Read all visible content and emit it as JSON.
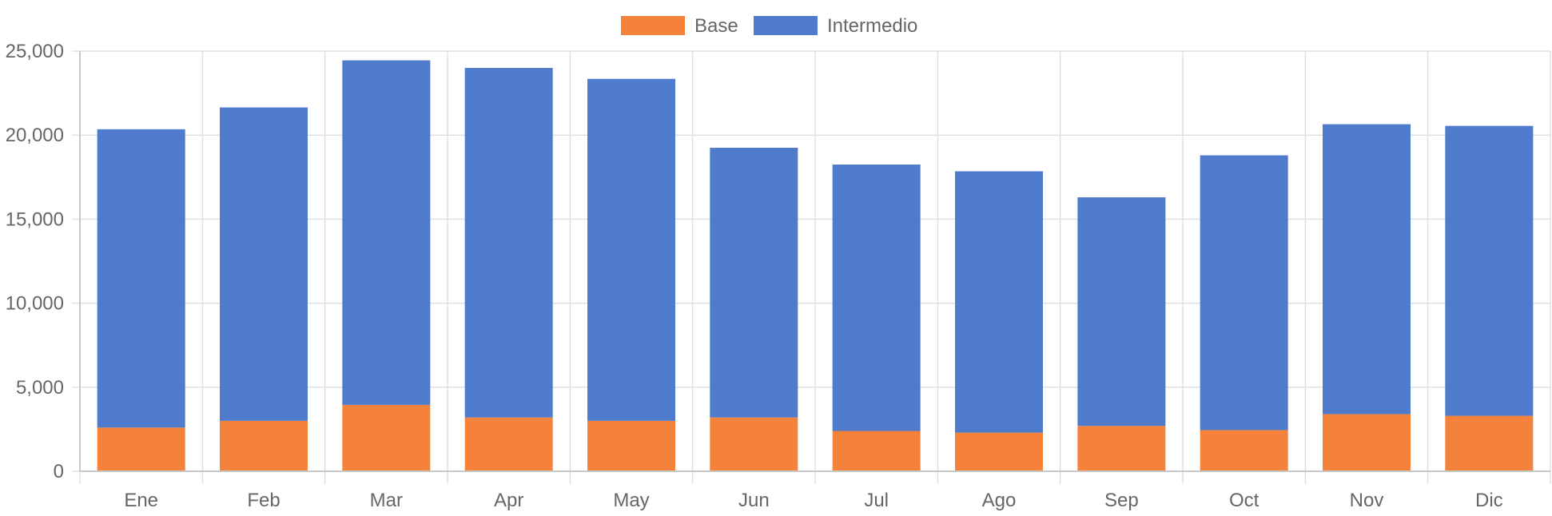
{
  "chart_data": {
    "type": "bar",
    "stacked": true,
    "title": "",
    "xlabel": "",
    "ylabel": "",
    "categories": [
      "Ene",
      "Feb",
      "Mar",
      "Apr",
      "May",
      "Jun",
      "Jul",
      "Ago",
      "Sep",
      "Oct",
      "Nov",
      "Dic"
    ],
    "series": [
      {
        "name": "Base",
        "color": "#f4823a",
        "values": [
          2600,
          3000,
          3950,
          3200,
          3000,
          3200,
          2400,
          2300,
          2700,
          2450,
          3400,
          3300
        ]
      },
      {
        "name": "Intermedio",
        "color": "#4f7bcd",
        "values": [
          17750,
          18650,
          20500,
          20800,
          20350,
          16050,
          15850,
          15550,
          13600,
          16350,
          17250,
          17250
        ]
      }
    ],
    "ylim": [
      0,
      25000
    ],
    "yticks": [
      0,
      5000,
      10000,
      15000,
      20000,
      25000
    ],
    "ytick_labels": [
      "0",
      "5,000",
      "10,000",
      "15,000",
      "20,000",
      "25,000"
    ],
    "grid": true,
    "legend_position": "top-center"
  }
}
